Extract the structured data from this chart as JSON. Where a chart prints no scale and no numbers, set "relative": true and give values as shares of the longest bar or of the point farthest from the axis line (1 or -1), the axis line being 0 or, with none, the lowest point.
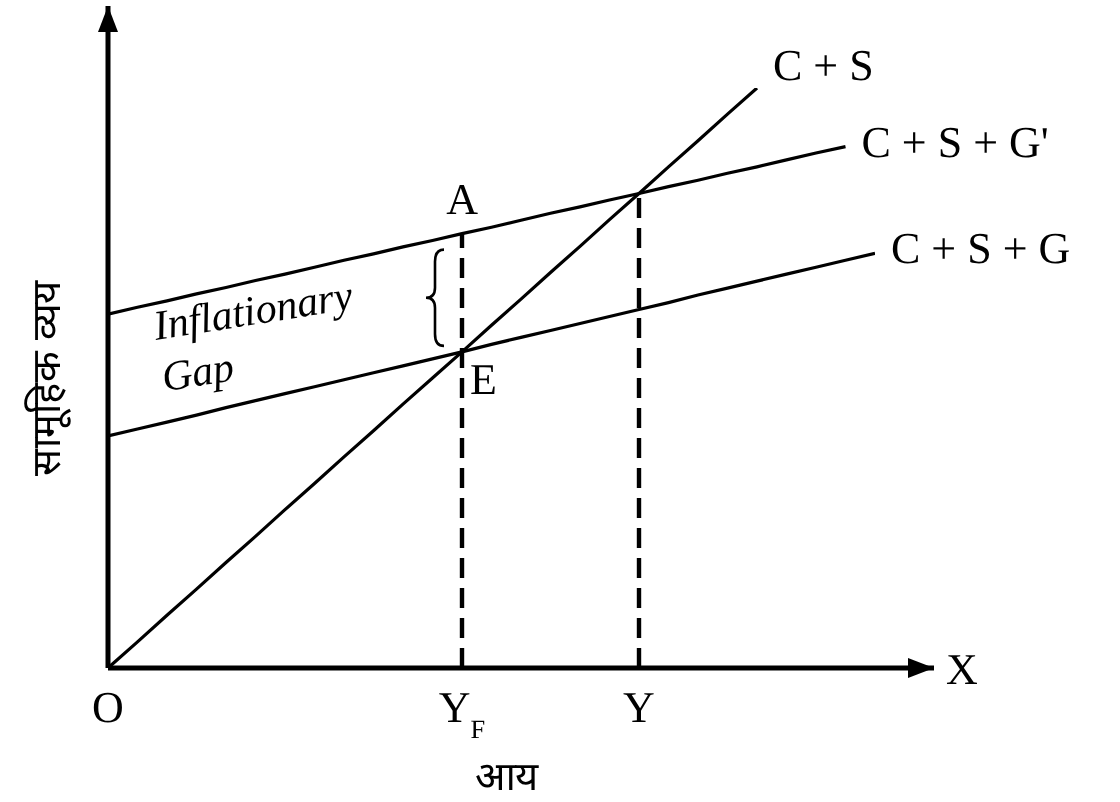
{
  "chart_data": {
    "type": "line",
    "xlabel": "आय",
    "ylabel": "सामूहिक व्यय",
    "relative": true,
    "marker": "none",
    "categories": [
      "O",
      null,
      null,
      null,
      null,
      null,
      null,
      null,
      null,
      null,
      null,
      null,
      "Y$_{F}$",
      null,
      null,
      null,
      null,
      null,
      "Y",
      null,
      null,
      null,
      null,
      null,
      null,
      null,
      null
    ],
    "series": [
      {
        "name": "C + S",
        "color": "#000000",
        "values": [
          0,
          0.045,
          0.091,
          0.136,
          0.182,
          0.227,
          0.273,
          0.318,
          0.364,
          0.409,
          0.455,
          0.5,
          0.545,
          0.591,
          0.636,
          0.682,
          0.727,
          0.773,
          0.818,
          0.864,
          0.909,
          0.955,
          1,
          null,
          null,
          null,
          null
        ]
      },
      {
        "name": "C + S + G'",
        "color": "#000000",
        "values": [
          0.61,
          0.622,
          0.633,
          0.645,
          0.656,
          0.668,
          0.679,
          0.691,
          0.703,
          0.714,
          0.726,
          0.737,
          0.749,
          0.76,
          0.772,
          0.784,
          0.795,
          0.807,
          0.818,
          0.83,
          0.841,
          0.853,
          0.864,
          0.876,
          0.888,
          0.899,
          null
        ]
      },
      {
        "name": "C + S + G",
        "color": "#000000",
        "values": [
          0.4,
          0.412,
          0.424,
          0.436,
          0.449,
          0.461,
          0.473,
          0.485,
          0.497,
          0.509,
          0.521,
          0.533,
          0.545,
          0.558,
          0.57,
          0.582,
          0.594,
          0.606,
          0.618,
          0.63,
          0.643,
          0.655,
          0.667,
          0.679,
          0.691,
          0.703,
          0.715
        ]
      }
    ],
    "ref_lines": [
      {
        "axis": "x",
        "value": "Y$_{F}$",
        "color": "#000000",
        "line_style": "dashed"
      },
      {
        "axis": "x",
        "value": "Y",
        "color": "#000000",
        "line_style": "dashed"
      }
    ],
    "annotations": [
      {
        "text": "A",
        "x": "Y$_{F}$",
        "y": 0.749
      },
      {
        "text": "E",
        "x": "Y$_{F}$",
        "y": 0.545
      },
      "Inflationary Gap",
      "X"
    ]
  }
}
